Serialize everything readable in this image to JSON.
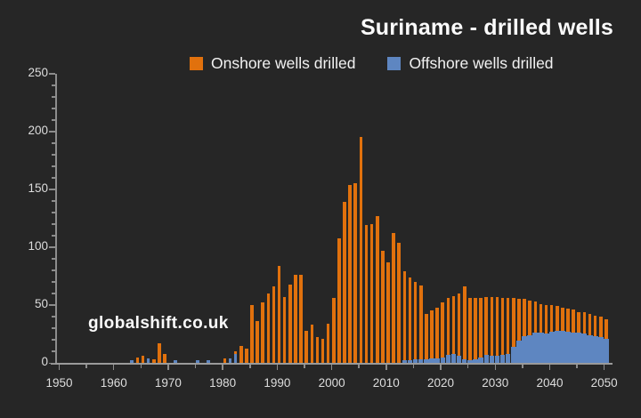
{
  "title": "Suriname - drilled wells",
  "watermark": "globalshift.co.uk",
  "colors": {
    "background": "#262626",
    "onshore": "#e1710d",
    "offshore": "#5e86c1",
    "axis": "#8c8c8c",
    "tick_label": "#dddddd",
    "text": "#f2f2f2"
  },
  "legend": {
    "position": "top-center",
    "items": [
      {
        "label": "Onshore wells drilled",
        "color": "#e1710d"
      },
      {
        "label": "Offshore wells drilled",
        "color": "#5e86c1"
      }
    ]
  },
  "chart_data": {
    "type": "bar",
    "stacked": true,
    "title": "Suriname - drilled wells",
    "xlabel": "",
    "ylabel": "",
    "xlim": [
      1949,
      2051
    ],
    "ylim": [
      0,
      250
    ],
    "x_ticks": [
      1950,
      1960,
      1970,
      1980,
      1990,
      2000,
      2010,
      2020,
      2030,
      2040,
      2050
    ],
    "x_minor_step": 5,
    "y_ticks": [
      0,
      50,
      100,
      150,
      200,
      250
    ],
    "y_minor_step": 10,
    "grid": false,
    "legend_position": "top",
    "series": [
      {
        "name": "Onshore wells drilled",
        "color": "#e1710d",
        "points": [
          [
            1964,
            5
          ],
          [
            1965,
            6
          ],
          [
            1967,
            3
          ],
          [
            1968,
            17
          ],
          [
            1969,
            8
          ],
          [
            1980,
            4
          ],
          [
            1982,
            2
          ],
          [
            1983,
            15
          ],
          [
            1984,
            12
          ],
          [
            1985,
            50
          ],
          [
            1986,
            36
          ],
          [
            1987,
            52
          ],
          [
            1988,
            60
          ],
          [
            1989,
            66
          ],
          [
            1990,
            84
          ],
          [
            1991,
            57
          ],
          [
            1992,
            68
          ],
          [
            1993,
            76
          ],
          [
            1994,
            76
          ],
          [
            1995,
            28
          ],
          [
            1996,
            33
          ],
          [
            1997,
            22
          ],
          [
            1998,
            21
          ],
          [
            1999,
            34
          ],
          [
            2000,
            56
          ],
          [
            2001,
            108
          ],
          [
            2002,
            139
          ],
          [
            2003,
            154
          ],
          [
            2004,
            155
          ],
          [
            2005,
            195
          ],
          [
            2006,
            119
          ],
          [
            2007,
            120
          ],
          [
            2008,
            127
          ],
          [
            2009,
            97
          ],
          [
            2010,
            87
          ],
          [
            2011,
            112
          ],
          [
            2012,
            104
          ],
          [
            2013,
            77
          ],
          [
            2014,
            72
          ],
          [
            2015,
            67
          ],
          [
            2016,
            64
          ],
          [
            2017,
            39
          ],
          [
            2018,
            41
          ],
          [
            2019,
            44
          ],
          [
            2020,
            47
          ],
          [
            2021,
            49
          ],
          [
            2022,
            50
          ],
          [
            2023,
            54
          ],
          [
            2024,
            63
          ],
          [
            2025,
            54
          ],
          [
            2026,
            53
          ],
          [
            2027,
            51
          ],
          [
            2028,
            50
          ],
          [
            2029,
            51
          ],
          [
            2030,
            51
          ],
          [
            2031,
            49
          ],
          [
            2032,
            48
          ],
          [
            2033,
            42
          ],
          [
            2034,
            36
          ],
          [
            2035,
            32
          ],
          [
            2036,
            30
          ],
          [
            2037,
            27
          ],
          [
            2038,
            25
          ],
          [
            2039,
            25
          ],
          [
            2040,
            23
          ],
          [
            2041,
            21
          ],
          [
            2042,
            20
          ],
          [
            2043,
            20
          ],
          [
            2044,
            20
          ],
          [
            2045,
            18
          ],
          [
            2046,
            19
          ],
          [
            2047,
            18
          ],
          [
            2048,
            18
          ],
          [
            2049,
            18
          ],
          [
            2050,
            17
          ]
        ]
      },
      {
        "name": "Offshore wells drilled",
        "color": "#5e86c1",
        "points": [
          [
            1963,
            2
          ],
          [
            1966,
            4
          ],
          [
            1971,
            2
          ],
          [
            1975,
            2
          ],
          [
            1977,
            2
          ],
          [
            1981,
            4
          ],
          [
            1982,
            8
          ],
          [
            2013,
            2
          ],
          [
            2014,
            2
          ],
          [
            2015,
            3
          ],
          [
            2016,
            3
          ],
          [
            2017,
            3
          ],
          [
            2018,
            4
          ],
          [
            2019,
            4
          ],
          [
            2020,
            5
          ],
          [
            2021,
            7
          ],
          [
            2022,
            8
          ],
          [
            2023,
            6
          ],
          [
            2024,
            3
          ],
          [
            2025,
            2
          ],
          [
            2026,
            3
          ],
          [
            2027,
            5
          ],
          [
            2028,
            7
          ],
          [
            2029,
            6
          ],
          [
            2030,
            6
          ],
          [
            2031,
            7
          ],
          [
            2032,
            8
          ],
          [
            2033,
            14
          ],
          [
            2034,
            19
          ],
          [
            2035,
            23
          ],
          [
            2036,
            24
          ],
          [
            2037,
            26
          ],
          [
            2038,
            26
          ],
          [
            2039,
            25
          ],
          [
            2040,
            27
          ],
          [
            2041,
            28
          ],
          [
            2042,
            28
          ],
          [
            2043,
            27
          ],
          [
            2044,
            26
          ],
          [
            2045,
            26
          ],
          [
            2046,
            25
          ],
          [
            2047,
            24
          ],
          [
            2048,
            23
          ],
          [
            2049,
            22
          ],
          [
            2050,
            21
          ]
        ]
      }
    ]
  }
}
